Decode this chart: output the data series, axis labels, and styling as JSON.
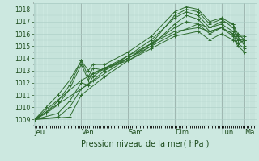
{
  "bg_color": "#cce8e0",
  "grid_color": "#aaccc4",
  "line_color": "#2d6b2d",
  "xlabel_text": "Pression niveau de la mer( hPa )",
  "xtick_labels": [
    "Jeu",
    "Ven",
    "Sam",
    "Dim",
    "Lun",
    "Ma"
  ],
  "xtick_positions": [
    0,
    1,
    2,
    3,
    4,
    4.5
  ],
  "ylim": [
    1008.5,
    1018.5
  ],
  "yticks": [
    1009,
    1010,
    1011,
    1012,
    1013,
    1014,
    1015,
    1016,
    1017,
    1018
  ],
  "xlim": [
    -0.02,
    4.75
  ],
  "series": [
    [
      0.0,
      1009.0,
      0.25,
      1009.6,
      0.5,
      1010.5,
      0.75,
      1011.8,
      1.0,
      1013.8,
      1.15,
      1012.5,
      1.25,
      1013.2,
      1.5,
      1013.0,
      2.0,
      1014.2,
      2.5,
      1015.5,
      3.0,
      1017.3,
      3.25,
      1017.8,
      3.5,
      1017.5,
      3.75,
      1016.5,
      4.0,
      1017.0,
      4.25,
      1016.8,
      4.35,
      1015.5,
      4.5,
      1015.3
    ],
    [
      0.0,
      1009.0,
      0.25,
      1009.5,
      0.5,
      1010.2,
      0.75,
      1011.5,
      1.0,
      1013.5,
      1.15,
      1012.2,
      1.25,
      1012.8,
      1.5,
      1013.2,
      2.0,
      1014.0,
      2.5,
      1015.2,
      3.0,
      1017.5,
      3.25,
      1018.0,
      3.5,
      1017.8,
      3.75,
      1016.8,
      4.0,
      1017.2,
      4.25,
      1016.5,
      4.35,
      1015.8,
      4.5,
      1015.0
    ],
    [
      0.0,
      1009.0,
      0.25,
      1010.0,
      0.5,
      1011.0,
      0.75,
      1012.2,
      1.0,
      1013.8,
      1.15,
      1013.0,
      1.25,
      1013.5,
      1.5,
      1013.5,
      2.0,
      1014.5,
      2.5,
      1015.8,
      3.0,
      1017.8,
      3.25,
      1018.2,
      3.5,
      1018.0,
      3.75,
      1017.0,
      4.0,
      1017.3,
      4.25,
      1016.8,
      4.35,
      1016.0,
      4.5,
      1015.5
    ],
    [
      0.0,
      1009.0,
      0.5,
      1009.5,
      0.75,
      1010.5,
      1.0,
      1012.0,
      1.15,
      1011.8,
      1.25,
      1012.5,
      1.5,
      1013.2,
      2.0,
      1013.8,
      2.5,
      1015.0,
      3.0,
      1016.8,
      3.25,
      1017.5,
      3.5,
      1017.2,
      3.75,
      1016.2,
      4.0,
      1016.5,
      4.25,
      1016.0,
      4.35,
      1015.2,
      4.5,
      1014.8
    ],
    [
      0.0,
      1009.0,
      0.5,
      1009.2,
      0.75,
      1010.0,
      1.0,
      1011.5,
      1.25,
      1012.2,
      1.5,
      1013.0,
      2.0,
      1014.0,
      2.5,
      1015.2,
      3.0,
      1016.5,
      3.25,
      1017.0,
      3.5,
      1016.8,
      3.75,
      1016.0,
      4.0,
      1016.5,
      4.25,
      1015.8,
      4.35,
      1015.0,
      4.5,
      1014.5
    ],
    [
      0.0,
      1009.0,
      0.75,
      1009.2,
      1.0,
      1011.0,
      1.5,
      1012.5,
      2.0,
      1013.8,
      2.5,
      1014.8,
      3.0,
      1015.8,
      3.5,
      1016.2,
      3.75,
      1015.5,
      4.0,
      1016.0,
      4.25,
      1015.5,
      4.35,
      1015.2,
      4.5,
      1015.5
    ],
    [
      0.0,
      1009.0,
      1.0,
      1012.2,
      1.5,
      1013.2,
      2.0,
      1014.2,
      2.5,
      1015.2,
      3.0,
      1016.2,
      3.5,
      1016.5,
      3.75,
      1016.2,
      4.0,
      1016.5,
      4.25,
      1016.0,
      4.35,
      1015.5,
      4.5,
      1015.5
    ],
    [
      0.0,
      1009.0,
      2.0,
      1014.0,
      2.5,
      1015.0,
      3.0,
      1016.0,
      3.5,
      1016.8,
      3.75,
      1016.5,
      4.0,
      1016.8,
      4.25,
      1016.2,
      4.35,
      1015.8,
      4.5,
      1015.8
    ]
  ],
  "vline_color": "#888888",
  "vline_positions": [
    1.0,
    2.0,
    3.0,
    4.0,
    4.5
  ],
  "marker": "+",
  "marker_size": 2.5,
  "line_width": 0.7,
  "xlabel_fontsize": 7,
  "ytick_fontsize": 5.5,
  "xtick_fontsize": 6,
  "minor_x_step": 0.04167,
  "minor_y_step": 0.5
}
